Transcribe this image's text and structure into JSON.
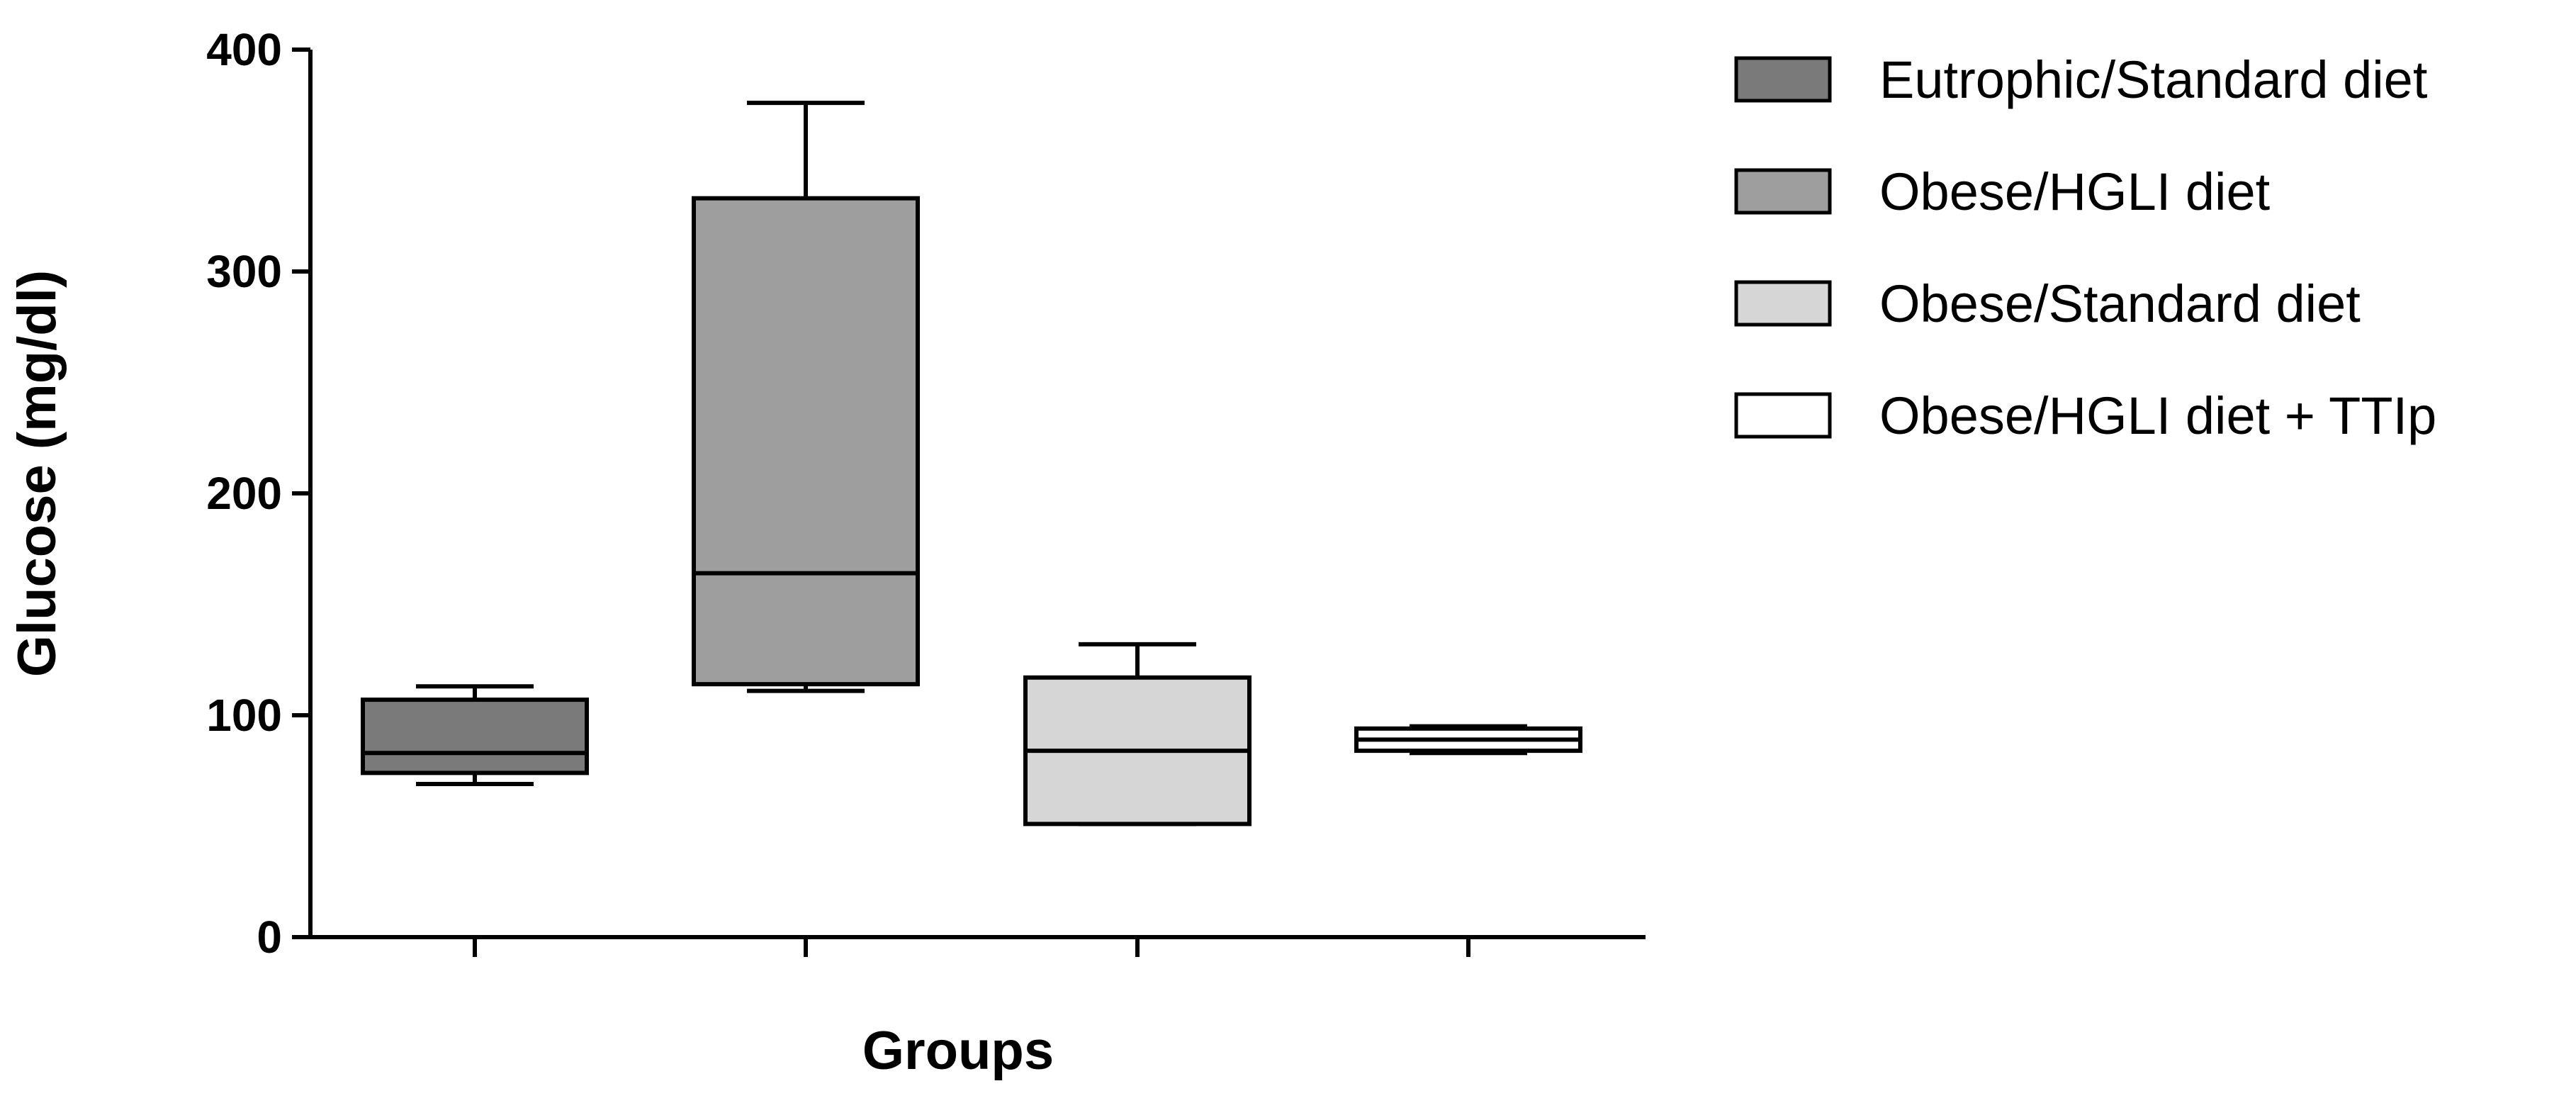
{
  "chart_data": {
    "type": "box",
    "title": "",
    "xlabel": "Groups",
    "ylabel": "Glucose (mg/dl)",
    "ylim": [
      0,
      400
    ],
    "yticks": [
      0,
      100,
      200,
      300,
      400
    ],
    "legend_position": "top-right",
    "groups": [
      {
        "name": "Eutrophic/Standard diet",
        "min": 69,
        "q1": 74,
        "median": 83,
        "q3": 107,
        "max": 113,
        "color": "#7a7a7a"
      },
      {
        "name": "Obese/HGLI diet",
        "min": 111,
        "q1": 114,
        "median": 164,
        "q3": 333,
        "max": 376,
        "color": "#9e9e9e"
      },
      {
        "name": "Obese/Standard diet",
        "min": 51,
        "q1": 51,
        "median": 84,
        "q3": 117,
        "max": 132,
        "color": "#d6d6d6"
      },
      {
        "name": "Obese/HGLI diet + TTIp",
        "min": 83,
        "q1": 84,
        "median": 89,
        "q3": 94,
        "max": 95,
        "color": "#ffffff"
      }
    ]
  }
}
